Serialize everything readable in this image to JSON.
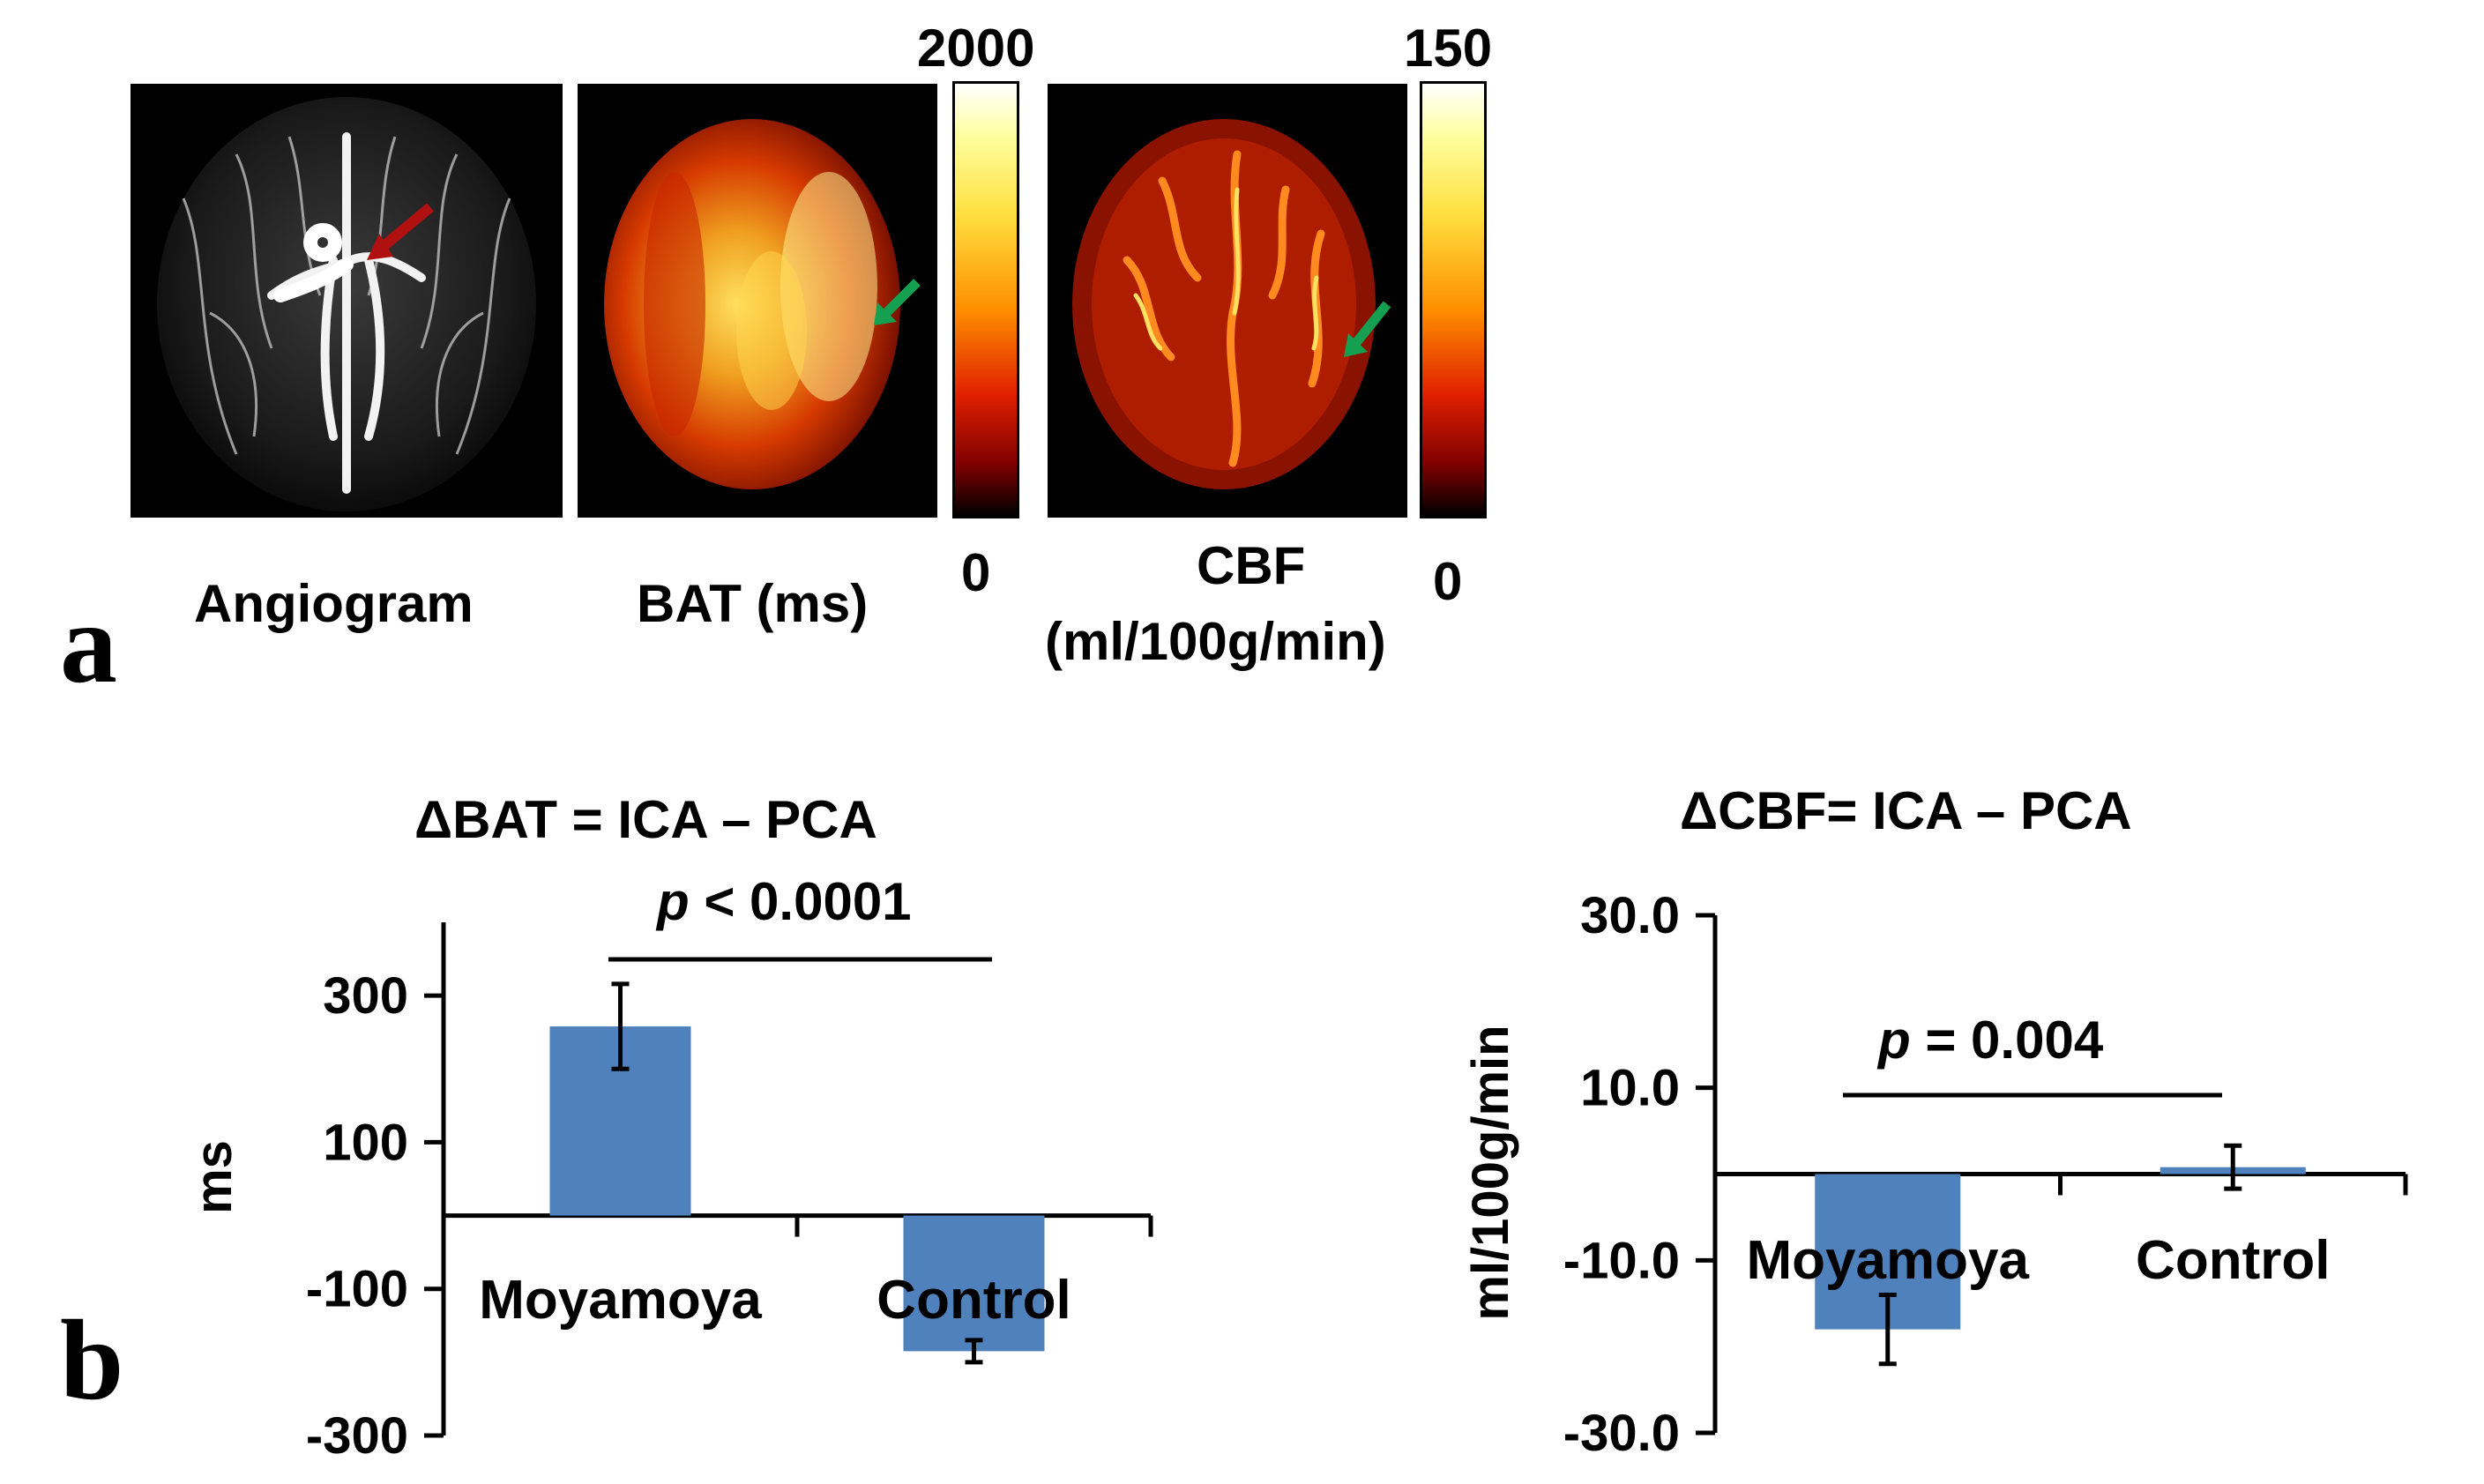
{
  "panel_a": {
    "letter": "a",
    "images": [
      {
        "label": "Angiogram",
        "arrow_color": "#b01010"
      },
      {
        "label": "BAT (ms)",
        "arrow_color": "#14a050"
      },
      {
        "label_line1": "CBF",
        "label_line2": "(ml/100g/min)",
        "arrow_color": "#14a050"
      }
    ],
    "colorbars": [
      {
        "max": "2000",
        "min": "0"
      },
      {
        "max": "150",
        "min": "0"
      }
    ]
  },
  "panel_b": {
    "letter": "b"
  },
  "chart_data": [
    {
      "type": "bar",
      "title": "ΔBAT = ICA – PCA",
      "ylabel": "ms",
      "xlabel": "",
      "categories": [
        "Moyamoya",
        "Control"
      ],
      "values": [
        258,
        -185
      ],
      "errors": [
        58,
        15
      ],
      "ylim": [
        -300,
        400
      ],
      "yticks": [
        300,
        100,
        -100,
        -300
      ],
      "ytick_labels": [
        "300",
        "100",
        "-100",
        "-300"
      ],
      "bar_color": "#4f81bd",
      "significance": {
        "p_prefix": "p",
        "p_text": " < 0.0001"
      }
    },
    {
      "type": "bar",
      "title": "ΔCBF= ICA – PCA",
      "ylabel": "ml/100g/min",
      "xlabel": "",
      "categories": [
        "Moyamoya",
        "Control"
      ],
      "values": [
        -18,
        0.8
      ],
      "errors": [
        4,
        2.5
      ],
      "ylim": [
        -30,
        30
      ],
      "yticks": [
        30,
        10,
        -10,
        -30
      ],
      "ytick_labels": [
        "30.0",
        "10.0",
        "-10.0",
        "-30.0"
      ],
      "bar_color": "#4f81bd",
      "significance": {
        "p_prefix": "p",
        "p_text": " = 0.004"
      }
    }
  ]
}
